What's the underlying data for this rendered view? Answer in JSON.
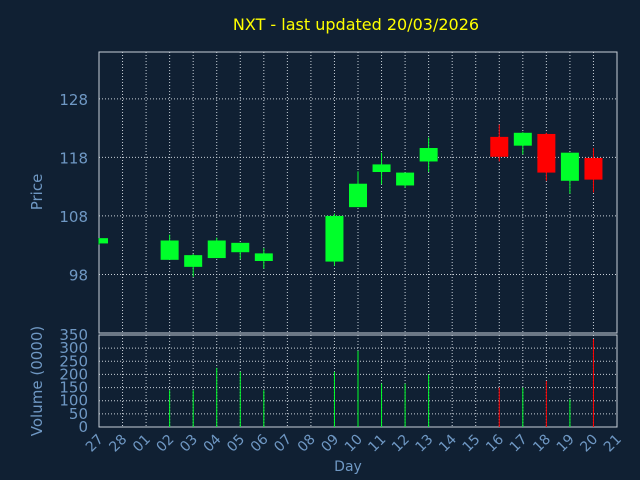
{
  "chart_data": {
    "type": "candlestick",
    "title": "NXT - last updated 20/03/2026",
    "xlabel": "Day",
    "price_ylabel": "Price",
    "volume_ylabel": "Volume (0000)",
    "x_ticks": [
      "27",
      "28",
      "01",
      "02",
      "03",
      "04",
      "05",
      "06",
      "07",
      "08",
      "09",
      "10",
      "11",
      "12",
      "13",
      "14",
      "15",
      "16",
      "17",
      "18",
      "19",
      "20",
      "21"
    ],
    "price_ylim": [
      88,
      136
    ],
    "price_yticks": [
      98,
      108,
      118,
      128
    ],
    "volume_ylim": [
      0,
      350
    ],
    "volume_yticks": [
      0,
      50,
      100,
      150,
      200,
      250,
      300,
      350
    ],
    "grid": true,
    "colors": {
      "background": "#102033",
      "plot_border": "#c8d0d8",
      "grid": "#c8d0d8",
      "title": "#ffff00",
      "axis_text": "#6f98c4",
      "up": "#00ff2a",
      "down": "#ff0000"
    },
    "candles": [
      {
        "day": "27",
        "open": 103.3,
        "high": 104.2,
        "low": 103.1,
        "close": 104.2,
        "volume": 0
      },
      {
        "day": "02",
        "open": 100.5,
        "high": 104.8,
        "low": 100.5,
        "close": 103.8,
        "volume": 140
      },
      {
        "day": "03",
        "open": 99.3,
        "high": 101.5,
        "low": 97.6,
        "close": 101.3,
        "volume": 140
      },
      {
        "day": "04",
        "open": 100.8,
        "high": 104.3,
        "low": 100.8,
        "close": 103.8,
        "volume": 225
      },
      {
        "day": "05",
        "open": 101.8,
        "high": 103.4,
        "low": 100.6,
        "close": 103.4,
        "volume": 210
      },
      {
        "day": "06",
        "open": 100.3,
        "high": 102.5,
        "low": 99.0,
        "close": 101.6,
        "volume": 140
      },
      {
        "day": "09",
        "open": 100.2,
        "high": 108.4,
        "low": 99.5,
        "close": 108.0,
        "volume": 210
      },
      {
        "day": "10",
        "open": 109.5,
        "high": 115.6,
        "low": 109.5,
        "close": 113.5,
        "volume": 290
      },
      {
        "day": "11",
        "open": 115.5,
        "high": 118.8,
        "low": 113.4,
        "close": 116.8,
        "volume": 165
      },
      {
        "day": "12",
        "open": 113.2,
        "high": 115.4,
        "low": 112.8,
        "close": 115.4,
        "volume": 165
      },
      {
        "day": "13",
        "open": 117.3,
        "high": 121.4,
        "low": 115.5,
        "close": 119.6,
        "volume": 200
      },
      {
        "day": "16",
        "open": 121.5,
        "high": 123.6,
        "low": 117.3,
        "close": 118.1,
        "volume": 150
      },
      {
        "day": "17",
        "open": 120.0,
        "high": 122.3,
        "low": 118.5,
        "close": 122.2,
        "volume": 150
      },
      {
        "day": "18",
        "open": 122.0,
        "high": 122.2,
        "low": 114.0,
        "close": 115.4,
        "volume": 175
      },
      {
        "day": "19",
        "open": 114.0,
        "high": 118.8,
        "low": 111.8,
        "close": 118.8,
        "volume": 105
      },
      {
        "day": "20",
        "open": 117.9,
        "high": 119.6,
        "low": 112.0,
        "close": 114.2,
        "volume": 335
      }
    ]
  }
}
